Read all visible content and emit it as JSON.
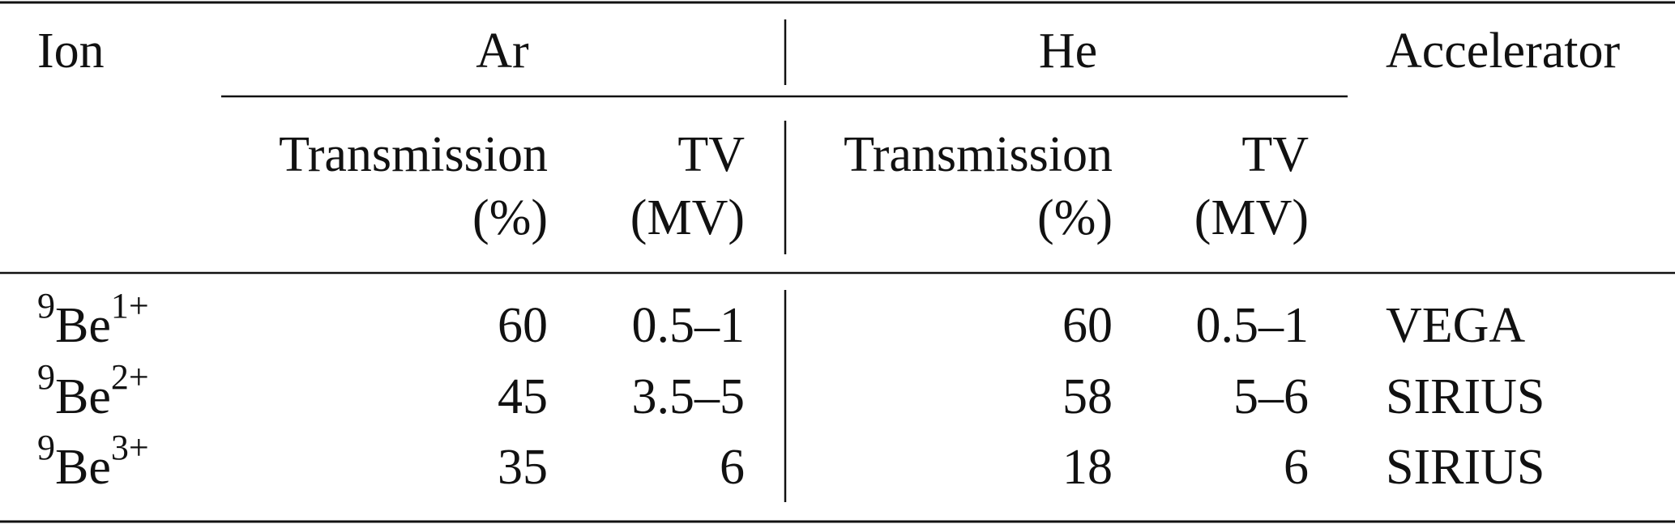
{
  "table": {
    "header": {
      "ion": "Ion",
      "groups": [
        "Ar",
        "He"
      ],
      "accelerator": "Accelerator",
      "subheaders": [
        {
          "line1": "Transmission",
          "line2": "(%)"
        },
        {
          "line1": "TV",
          "line2": "(MV)"
        }
      ]
    },
    "rows": [
      {
        "mass": "9",
        "element": "Be",
        "charge": "1+",
        "ar_transmission": 60,
        "ar_tv": "0.5–1",
        "he_transmission": 60,
        "he_tv": "0.5–1",
        "accelerator": "VEGA"
      },
      {
        "mass": "9",
        "element": "Be",
        "charge": "2+",
        "ar_transmission": 45,
        "ar_tv": "3.5–5",
        "he_transmission": 58,
        "he_tv": "5–6",
        "accelerator": "SIRIUS"
      },
      {
        "mass": "9",
        "element": "Be",
        "charge": "3+",
        "ar_transmission": 35,
        "ar_tv": 6,
        "he_transmission": 18,
        "he_tv": 6,
        "accelerator": "SIRIUS"
      }
    ]
  }
}
